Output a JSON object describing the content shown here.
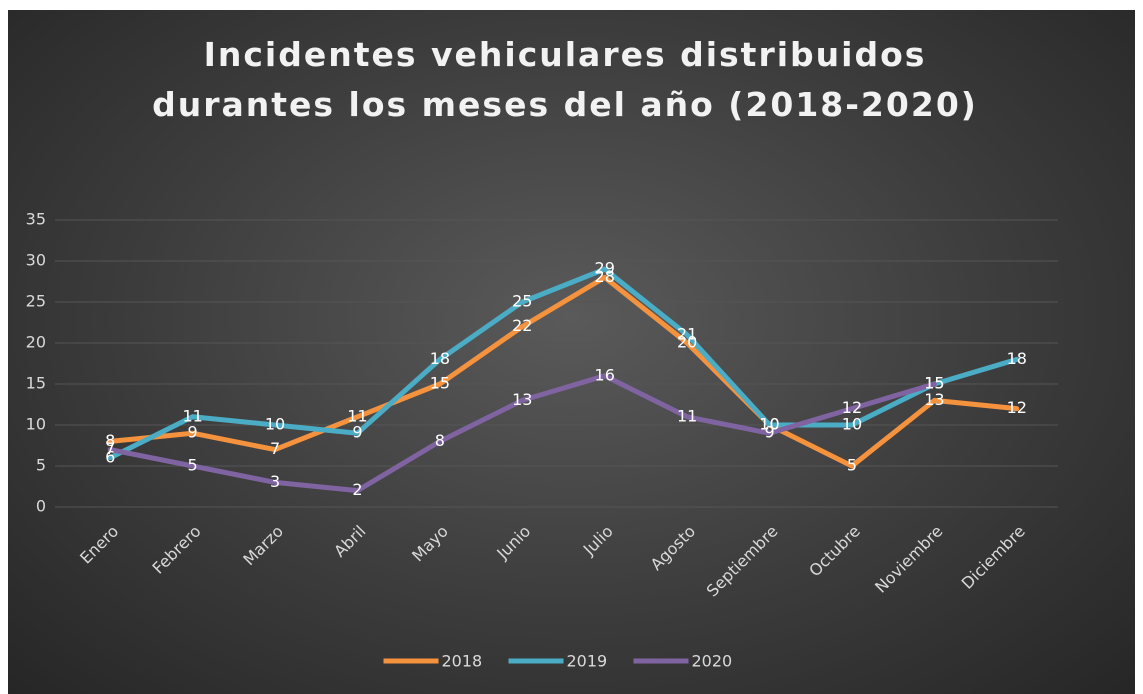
{
  "chart_data": {
    "type": "line",
    "title": "Incidentes vehiculares distribuidos durantes los meses del año (2018-2020)",
    "categories": [
      "Enero",
      "Febrero",
      "Marzo",
      "Abril",
      "Mayo",
      "Junio",
      "Julio",
      "Agosto",
      "Septiembre",
      "Octubre",
      "Noviembre",
      "Diciembre"
    ],
    "series": [
      {
        "name": "2018",
        "color": "#f5923e",
        "values": [
          8,
          9,
          7,
          11,
          15,
          22,
          28,
          20,
          10,
          5,
          13,
          12
        ]
      },
      {
        "name": "2019",
        "color": "#4bacc6",
        "values": [
          6,
          11,
          10,
          9,
          18,
          25,
          29,
          21,
          10,
          10,
          15,
          18
        ]
      },
      {
        "name": "2020",
        "color": "#8064a2",
        "values": [
          7,
          5,
          3,
          2,
          8,
          13,
          16,
          11,
          9,
          12,
          15,
          null
        ]
      }
    ],
    "ylim": [
      0,
      35
    ],
    "yticks": [
      0,
      5,
      10,
      15,
      20,
      25,
      30,
      35
    ],
    "grid": true,
    "legend": "bottom"
  }
}
